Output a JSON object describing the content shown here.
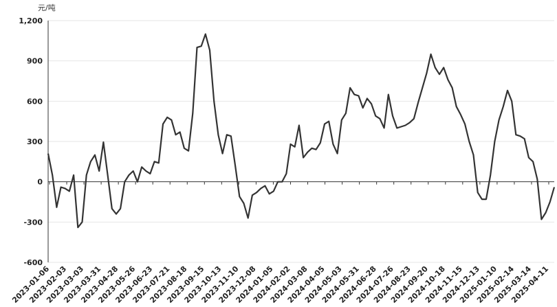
{
  "chart_data": {
    "type": "line",
    "unit_label": "元/吨",
    "title": "",
    "xlabel": "",
    "ylabel": "",
    "ylim": [
      -600,
      1200
    ],
    "yticks": [
      "-600",
      "-300",
      "0",
      "300",
      "600",
      "900",
      "1,200"
    ],
    "ytick_values": [
      -600,
      -300,
      0,
      300,
      600,
      900,
      1200
    ],
    "xticks": [
      "2023-01-06",
      "2023-02-03",
      "2023-03-03",
      "2023-03-31",
      "2023-04-28",
      "2023-05-26",
      "2023-06-23",
      "2023-07-21",
      "2023-08-18",
      "2023-09-15",
      "2023-10-13",
      "2023-11-10",
      "2023-12-08",
      "2024-01-05",
      "2024-02-02",
      "2024-03-08",
      "2024-04-05",
      "2024-05-03",
      "2024-05-31",
      "2024-06-28",
      "2024-07-26",
      "2024-08-23",
      "2024-09-20",
      "2024-10-18",
      "2024-11-15",
      "2024-12-13",
      "2025-01-10",
      "2025-02-14",
      "2025-03-14",
      "2025-04-11"
    ],
    "grid": true,
    "line_color": "#333333",
    "series": [
      {
        "values": [
          210,
          50,
          -190,
          -40,
          -50,
          -70,
          50,
          -340,
          -300,
          50,
          150,
          200,
          80,
          295,
          50,
          -200,
          -240,
          -200,
          0,
          50,
          80,
          0,
          110,
          80,
          60,
          150,
          140,
          430,
          480,
          460,
          350,
          370,
          250,
          230,
          510,
          1000,
          1010,
          1100,
          980,
          600,
          350,
          210,
          350,
          340,
          120,
          -110,
          -160,
          -270,
          -100,
          -80,
          -50,
          -30,
          -90,
          -70,
          0,
          0,
          60,
          280,
          260,
          420,
          180,
          220,
          250,
          240,
          290,
          430,
          450,
          280,
          210,
          460,
          510,
          700,
          650,
          640,
          550,
          620,
          580,
          490,
          470,
          400,
          650,
          490,
          400,
          410,
          420,
          440,
          470,
          590,
          700,
          810,
          950,
          850,
          800,
          850,
          760,
          700,
          560,
          500,
          430,
          300,
          200,
          -80,
          -130,
          -130,
          50,
          300,
          460,
          560,
          680,
          600,
          350,
          340,
          320,
          180,
          150,
          20,
          -280,
          -230,
          -150,
          -40
        ]
      }
    ]
  }
}
